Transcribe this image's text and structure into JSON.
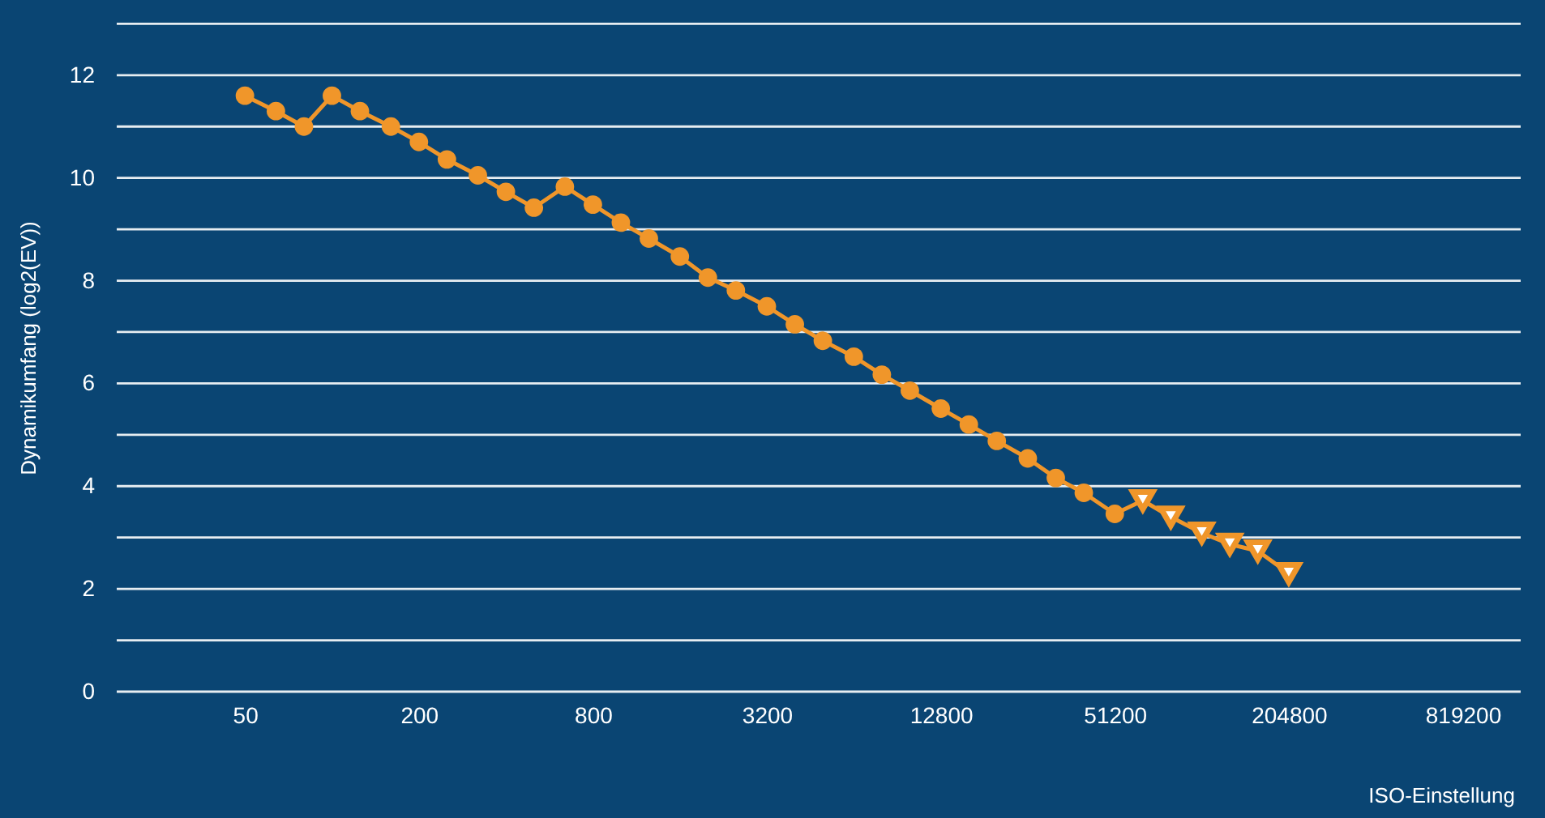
{
  "chart_data": {
    "type": "line",
    "xlabel": "ISO-Einstellung",
    "ylabel": "Dynamikumfang (log2(EV))",
    "log": "x",
    "grid": "y",
    "line_style": "solid",
    "xlim": [
      18,
      1300000
    ],
    "xticks": [
      50,
      200,
      800,
      3200,
      12800,
      51200,
      204800,
      819200
    ],
    "ylim": [
      0,
      13.4
    ],
    "yticks": [
      0,
      {
        "value": 1,
        "label": null
      },
      2,
      {
        "value": 3,
        "label": null
      },
      4,
      {
        "value": 5,
        "label": null
      },
      6,
      {
        "value": 7,
        "label": null
      },
      8,
      {
        "value": 9,
        "label": null
      },
      10,
      {
        "value": 11,
        "label": null
      },
      12,
      {
        "value": 13,
        "label": null
      }
    ],
    "series": [
      {
        "color": "#f0962a",
        "marker": "circle",
        "x": [
          50,
          64,
          80,
          100,
          125,
          160,
          200,
          250,
          320,
          400,
          500,
          640,
          800,
          1000,
          1250,
          1600,
          2000,
          2500,
          3200,
          4000,
          5000,
          6400,
          8000,
          10000,
          12800,
          16000,
          20000,
          25600,
          32000,
          40000,
          51200
        ],
        "values": [
          11.6,
          11.3,
          11.0,
          11.6,
          11.3,
          11.0,
          10.7,
          10.36,
          10.05,
          9.73,
          9.42,
          9.83,
          9.48,
          9.13,
          8.82,
          8.47,
          8.06,
          7.81,
          7.5,
          7.15,
          6.83,
          6.52,
          6.17,
          5.86,
          5.51,
          5.2,
          4.88,
          4.54,
          4.16,
          3.87,
          3.46
        ]
      },
      {
        "color": "#f0962a",
        "marker": "triangle",
        "x": [
          64000,
          80000,
          102400,
          128000,
          160000,
          204800
        ],
        "values": [
          3.72,
          3.4,
          3.09,
          2.87,
          2.74,
          2.3
        ]
      }
    ]
  }
}
